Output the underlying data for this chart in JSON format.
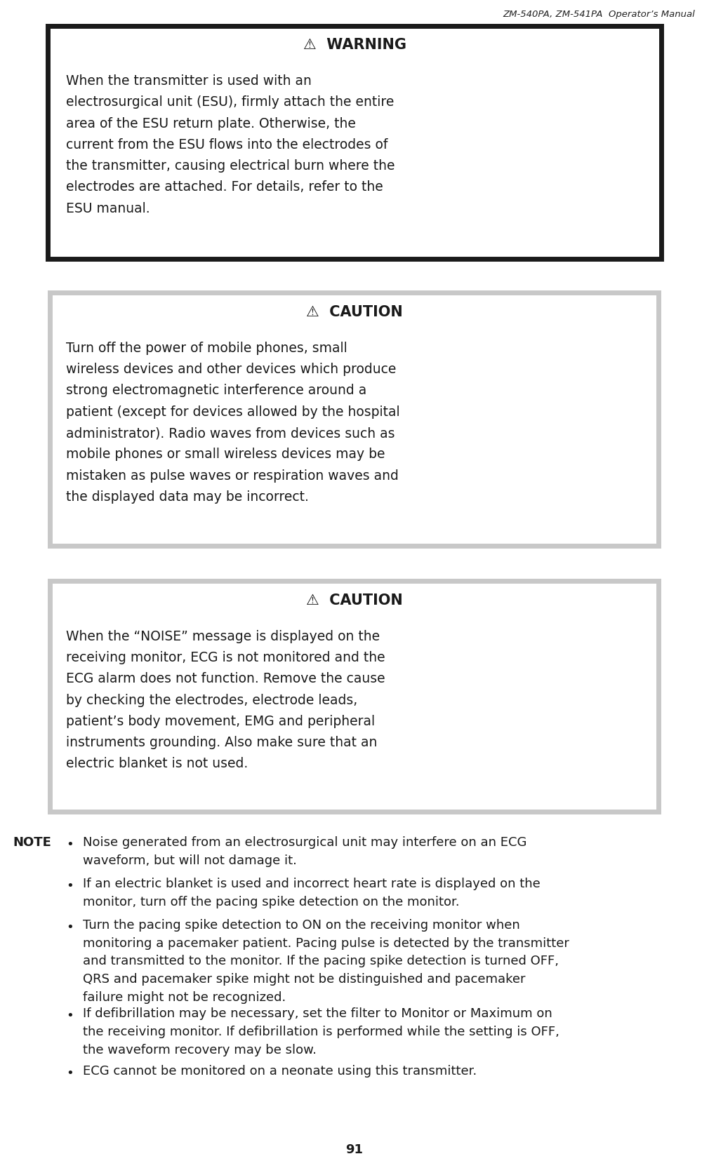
{
  "page_header": "ZM-540PA, ZM-541PA  Operator’s Manual",
  "page_number": "91",
  "bg_color": "#ffffff",
  "header_font_color": "#222222",
  "box1": {
    "border_color": "#1a1a1a",
    "bg_color": "#ffffff",
    "title": "⚠  WARNING",
    "body": "When the transmitter is used with an\nelectrosurgical unit (ESU), firmly attach the entire\narea of the ESU return plate. Otherwise, the\ncurrent from the ESU flows into the electrodes of\nthe transmitter, causing electrical burn where the\nelectrodes are attached. For details, refer to the\nESU manual."
  },
  "box2": {
    "border_color": "#aaaaaa",
    "bg_color": "#c8c8c8",
    "inner_bg": "#ffffff",
    "title": "⚠  CAUTION",
    "body": "Turn off the power of mobile phones, small\nwireless devices and other devices which produce\nstrong electromagnetic interference around a\npatient (except for devices allowed by the hospital\nadministrator). Radio waves from devices such as\nmobile phones or small wireless devices may be\nmistaken as pulse waves or respiration waves and\nthe displayed data may be incorrect."
  },
  "box3": {
    "border_color": "#aaaaaa",
    "bg_color": "#c8c8c8",
    "inner_bg": "#ffffff",
    "title": "⚠  CAUTION",
    "body": "When the “NOISE” message is displayed on the\nreceiving monitor, ECG is not monitored and the\nECG alarm does not function. Remove the cause\nby checking the electrodes, electrode leads,\npatient’s body movement, EMG and peripheral\ninstruments grounding. Also make sure that an\nelectric blanket is not used."
  },
  "note_label": "NOTE",
  "note_bullets": [
    "Noise generated from an electrosurgical unit may interfere on an ECG\nwaveform, but will not damage it.",
    "If an electric blanket is used and incorrect heart rate is displayed on the\nmonitor, turn off the pacing spike detection on the monitor.",
    "Turn the pacing spike detection to ON on the receiving monitor when\nmonitoring a pacemaker patient. Pacing pulse is detected by the transmitter\nand transmitted to the monitor. If the pacing spike detection is turned OFF,\nQRS and pacemaker spike might not be distinguished and pacemaker\nfailure might not be recognized.",
    "If defibrillation may be necessary, set the filter to Monitor or Maximum on\nthe receiving monitor. If defibrillation is performed while the setting is OFF,\nthe waveform recovery may be slow.",
    "ECG cannot be monitored on a neonate using this transmitter."
  ]
}
